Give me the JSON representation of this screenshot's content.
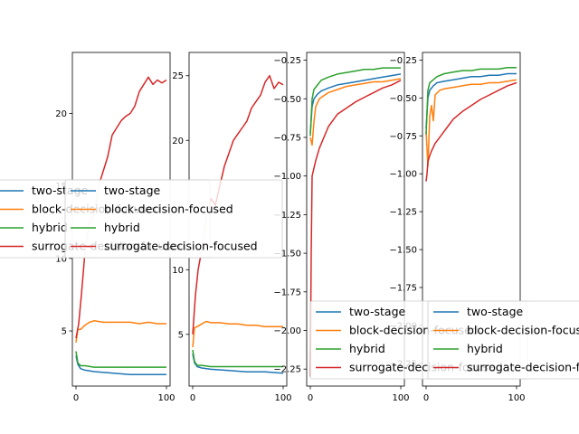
{
  "colors": {
    "two_stage": "#1f77b4",
    "block_decision_focused": "#ff7f0e",
    "hybrid": "#2ca02c",
    "surrogate_decision_focused": "#d62728"
  },
  "legend_labels": [
    "two-stage",
    "block-decision-focused",
    "hybrid",
    "surrogate-decision-focused"
  ],
  "chart_data": [
    {
      "type": "line",
      "xlim": [
        -4,
        104
      ],
      "ylim": [
        1.2,
        24.2
      ],
      "x_ticks": [
        0,
        100
      ],
      "x_tick_labels": [
        "0",
        "100"
      ],
      "y_ticks": [
        5,
        10,
        15,
        20
      ],
      "y_tick_labels": [
        "5",
        "10",
        "15",
        "20"
      ],
      "legend_placement": "center-left",
      "series": [
        {
          "name": "two-stage",
          "x": [
            0,
            2,
            5,
            10,
            20,
            40,
            60,
            80,
            100
          ],
          "values": [
            3.3,
            2.7,
            2.4,
            2.3,
            2.2,
            2.1,
            2.0,
            2.0,
            2.0
          ]
        },
        {
          "name": "block-decision-focused",
          "x": [
            0,
            2,
            5,
            10,
            15,
            20,
            30,
            40,
            50,
            60,
            70,
            80,
            90,
            100
          ],
          "values": [
            4.2,
            5.1,
            5.1,
            5.4,
            5.6,
            5.7,
            5.6,
            5.6,
            5.6,
            5.6,
            5.5,
            5.6,
            5.5,
            5.5
          ]
        },
        {
          "name": "hybrid",
          "x": [
            0,
            2,
            5,
            10,
            20,
            40,
            60,
            80,
            100
          ],
          "values": [
            3.6,
            2.8,
            2.6,
            2.6,
            2.5,
            2.5,
            2.5,
            2.5,
            2.5
          ]
        },
        {
          "name": "surrogate-decision-focused",
          "x": [
            0,
            3,
            6,
            10,
            15,
            20,
            25,
            30,
            35,
            40,
            45,
            50,
            55,
            60,
            65,
            70,
            75,
            80,
            85,
            90,
            95,
            100
          ],
          "values": [
            4.5,
            5.5,
            7.5,
            10.5,
            12.5,
            13.0,
            15.0,
            16.0,
            17.0,
            18.5,
            19.0,
            19.5,
            19.8,
            20.0,
            20.5,
            21.5,
            22.0,
            22.5,
            22.0,
            22.3,
            22.1,
            22.3
          ]
        }
      ]
    },
    {
      "type": "line",
      "xlim": [
        -4,
        104
      ],
      "ylim": [
        1.0,
        26.8
      ],
      "x_ticks": [
        0,
        100
      ],
      "x_tick_labels": [
        "0",
        "100"
      ],
      "y_ticks": [
        5,
        10,
        15,
        20,
        25
      ],
      "y_tick_labels": [
        "5",
        "10",
        "15",
        "20",
        "25"
      ],
      "legend_placement": "center-left",
      "series": [
        {
          "name": "two-stage",
          "x": [
            0,
            2,
            5,
            10,
            20,
            40,
            60,
            80,
            100
          ],
          "values": [
            3.5,
            2.8,
            2.5,
            2.4,
            2.3,
            2.2,
            2.1,
            2.1,
            2.0
          ]
        },
        {
          "name": "block-decision-focused",
          "x": [
            0,
            2,
            5,
            10,
            15,
            20,
            30,
            40,
            50,
            60,
            70,
            80,
            90,
            100
          ],
          "values": [
            4.0,
            5.5,
            5.6,
            5.8,
            6.0,
            5.9,
            5.9,
            5.8,
            5.8,
            5.7,
            5.7,
            5.6,
            5.6,
            5.6
          ]
        },
        {
          "name": "hybrid",
          "x": [
            0,
            2,
            5,
            10,
            20,
            40,
            60,
            80,
            100
          ],
          "values": [
            3.8,
            2.9,
            2.6,
            2.6,
            2.5,
            2.5,
            2.5,
            2.5,
            2.5
          ]
        },
        {
          "name": "surrogate-decision-focused",
          "x": [
            0,
            3,
            6,
            10,
            15,
            20,
            25,
            30,
            35,
            40,
            45,
            50,
            55,
            60,
            65,
            70,
            75,
            80,
            85,
            90,
            95,
            100
          ],
          "values": [
            5.0,
            8.0,
            10.0,
            11.5,
            14.0,
            15.5,
            15.0,
            16.5,
            18.0,
            19.0,
            20.0,
            20.5,
            21.0,
            21.5,
            22.5,
            23.0,
            23.5,
            24.5,
            25.0,
            24.0,
            24.5,
            24.3
          ]
        }
      ]
    },
    {
      "type": "line",
      "xlim": [
        -4,
        104
      ],
      "ylim": [
        -2.36,
        -0.2
      ],
      "x_ticks": [
        0,
        100
      ],
      "x_tick_labels": [
        "0",
        "100"
      ],
      "y_ticks": [
        -2.25,
        -2.0,
        -1.75,
        -1.5,
        -1.25,
        -1.0,
        -0.75,
        -0.5,
        -0.25
      ],
      "y_tick_labels": [
        "−2.25",
        "−2.00",
        "−1.75",
        "−1.50",
        "−1.25",
        "−1.00",
        "−0.75",
        "−0.50",
        "−0.25"
      ],
      "legend_placement": "lower-right",
      "series": [
        {
          "name": "two-stage",
          "x": [
            0,
            2,
            4,
            8,
            12,
            20,
            30,
            40,
            50,
            60,
            70,
            80,
            90,
            100
          ],
          "values": [
            -0.72,
            -0.55,
            -0.5,
            -0.47,
            -0.45,
            -0.43,
            -0.41,
            -0.4,
            -0.39,
            -0.38,
            -0.37,
            -0.36,
            -0.35,
            -0.34
          ]
        },
        {
          "name": "block-decision-focused",
          "x": [
            0,
            2,
            4,
            6,
            10,
            15,
            20,
            30,
            40,
            50,
            60,
            70,
            80,
            90,
            100
          ],
          "values": [
            -0.75,
            -0.8,
            -0.65,
            -0.55,
            -0.5,
            -0.48,
            -0.46,
            -0.44,
            -0.42,
            -0.41,
            -0.4,
            -0.39,
            -0.39,
            -0.38,
            -0.37
          ]
        },
        {
          "name": "hybrid",
          "x": [
            0,
            2,
            4,
            8,
            12,
            20,
            30,
            40,
            50,
            60,
            70,
            80,
            90,
            100
          ],
          "values": [
            -0.74,
            -0.5,
            -0.44,
            -0.41,
            -0.38,
            -0.36,
            -0.34,
            -0.33,
            -0.32,
            -0.31,
            -0.31,
            -0.3,
            -0.3,
            -0.3
          ]
        },
        {
          "name": "surrogate-decision-focused",
          "x": [
            0,
            1,
            2,
            4,
            6,
            10,
            15,
            20,
            25,
            30,
            40,
            50,
            60,
            70,
            80,
            90,
            100
          ],
          "values": [
            -2.3,
            -1.5,
            -1.0,
            -0.95,
            -0.9,
            -0.82,
            -0.75,
            -0.68,
            -0.64,
            -0.6,
            -0.56,
            -0.52,
            -0.49,
            -0.46,
            -0.43,
            -0.41,
            -0.38
          ]
        }
      ]
    },
    {
      "type": "line",
      "xlim": [
        -4,
        104
      ],
      "ylim": [
        -2.4,
        -0.2
      ],
      "x_ticks": [
        0,
        100
      ],
      "x_tick_labels": [
        "0",
        "100"
      ],
      "y_ticks": [
        -2.25,
        -2.0,
        -1.75,
        -1.5,
        -1.25,
        -1.0,
        -0.75,
        -0.5,
        -0.25
      ],
      "y_tick_labels": [
        "−2.25",
        "−2.00",
        "−1.75",
        "−1.50",
        "−1.25",
        "−1.00",
        "−0.75",
        "−0.50",
        "−0.25"
      ],
      "legend_placement": "lower-right",
      "series": [
        {
          "name": "two-stage",
          "x": [
            0,
            2,
            4,
            8,
            12,
            20,
            30,
            40,
            50,
            60,
            70,
            80,
            90,
            100
          ],
          "values": [
            -0.7,
            -0.5,
            -0.45,
            -0.42,
            -0.4,
            -0.39,
            -0.38,
            -0.37,
            -0.36,
            -0.36,
            -0.35,
            -0.35,
            -0.34,
            -0.34
          ]
        },
        {
          "name": "block-decision-focused",
          "x": [
            0,
            2,
            4,
            6,
            8,
            10,
            15,
            20,
            30,
            40,
            50,
            60,
            70,
            80,
            90,
            100
          ],
          "values": [
            -0.72,
            -0.95,
            -0.62,
            -0.55,
            -0.65,
            -0.48,
            -0.45,
            -0.44,
            -0.43,
            -0.42,
            -0.41,
            -0.41,
            -0.4,
            -0.4,
            -0.39,
            -0.38
          ]
        },
        {
          "name": "hybrid",
          "x": [
            0,
            2,
            4,
            8,
            12,
            20,
            30,
            40,
            50,
            60,
            70,
            80,
            90,
            100
          ],
          "values": [
            -0.74,
            -0.45,
            -0.4,
            -0.38,
            -0.36,
            -0.34,
            -0.33,
            -0.32,
            -0.32,
            -0.31,
            -0.31,
            -0.31,
            -0.3,
            -0.3
          ]
        },
        {
          "name": "surrogate-decision-focused",
          "x": [
            0,
            1,
            2,
            4,
            6,
            10,
            15,
            20,
            25,
            30,
            40,
            50,
            60,
            70,
            80,
            90,
            100
          ],
          "values": [
            -1.05,
            -1.0,
            -0.92,
            -0.88,
            -0.85,
            -0.8,
            -0.76,
            -0.72,
            -0.68,
            -0.64,
            -0.59,
            -0.55,
            -0.51,
            -0.48,
            -0.45,
            -0.42,
            -0.4
          ]
        }
      ]
    }
  ]
}
